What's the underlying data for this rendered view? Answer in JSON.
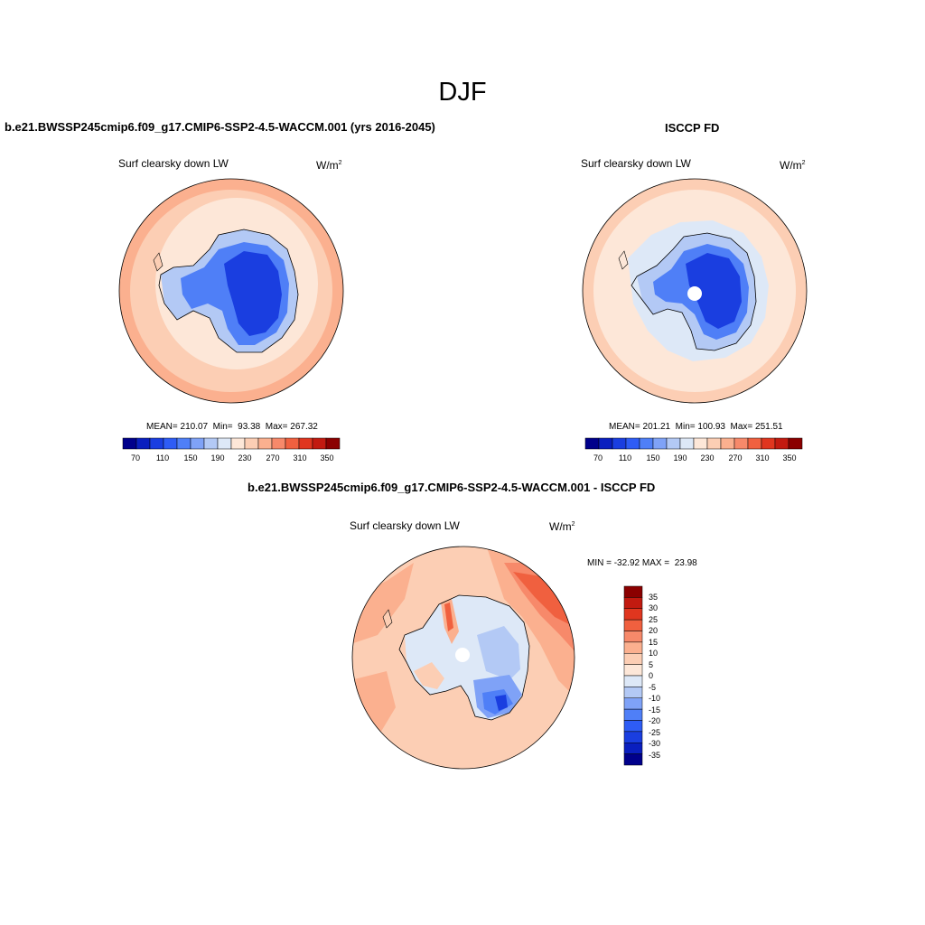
{
  "figure": {
    "title": "DJF"
  },
  "panels": [
    {
      "title": "b.e21.BWSSP245cmip6.f09_g17.CMIP6-SSP2-4.5-WACCM.001 (yrs 2016-2045)",
      "variable": "Surf clearsky down LW",
      "units_base": "W/m",
      "units_exp": "2",
      "stats_text": "MEAN= 210.07  Min=  93.38  Max= 267.32",
      "colorbar_labels": [
        "70",
        "110",
        "150",
        "190",
        "230",
        "270",
        "310",
        "350"
      ]
    },
    {
      "title": "ISCCP FD",
      "variable": "Surf clearsky down LW",
      "units_base": "W/m",
      "units_exp": "2",
      "stats_text": "MEAN= 201.21  Min= 100.93  Max= 251.51",
      "colorbar_labels": [
        "70",
        "110",
        "150",
        "190",
        "230",
        "270",
        "310",
        "350"
      ]
    },
    {
      "title": "b.e21.BWSSP245cmip6.f09_g17.CMIP6-SSP2-4.5-WACCM.001 - ISCCP FD",
      "variable": "Surf clearsky down LW",
      "units_base": "W/m",
      "units_exp": "2",
      "stats_text": "MIN = -32.92 MAX =  23.98",
      "colorbar_labels": [
        "35",
        "30",
        "25",
        "20",
        "15",
        "10",
        "5",
        "0",
        "-5",
        "-10",
        "-15",
        "-20",
        "-25",
        "-30",
        "-35"
      ]
    }
  ],
  "colors": {
    "abs_scale": [
      "#00008b",
      "#0a1fbf",
      "#1a3ee0",
      "#2e5cf5",
      "#4f7ff7",
      "#7fa2f7",
      "#b3c9f5",
      "#dde8f7",
      "#fde7d8",
      "#fcceb4",
      "#fbb08f",
      "#f7896a",
      "#f0603f",
      "#e0361f",
      "#c21a10",
      "#8b0000"
    ],
    "diff_scale": [
      "#8b0000",
      "#c21a10",
      "#e0361f",
      "#f0603f",
      "#f7896a",
      "#fbb08f",
      "#fcceb4",
      "#fde7d8",
      "#dde8f7",
      "#b3c9f5",
      "#7fa2f7",
      "#4f7ff7",
      "#2e5cf5",
      "#1a3ee0",
      "#0a1fbf",
      "#00008b"
    ]
  }
}
